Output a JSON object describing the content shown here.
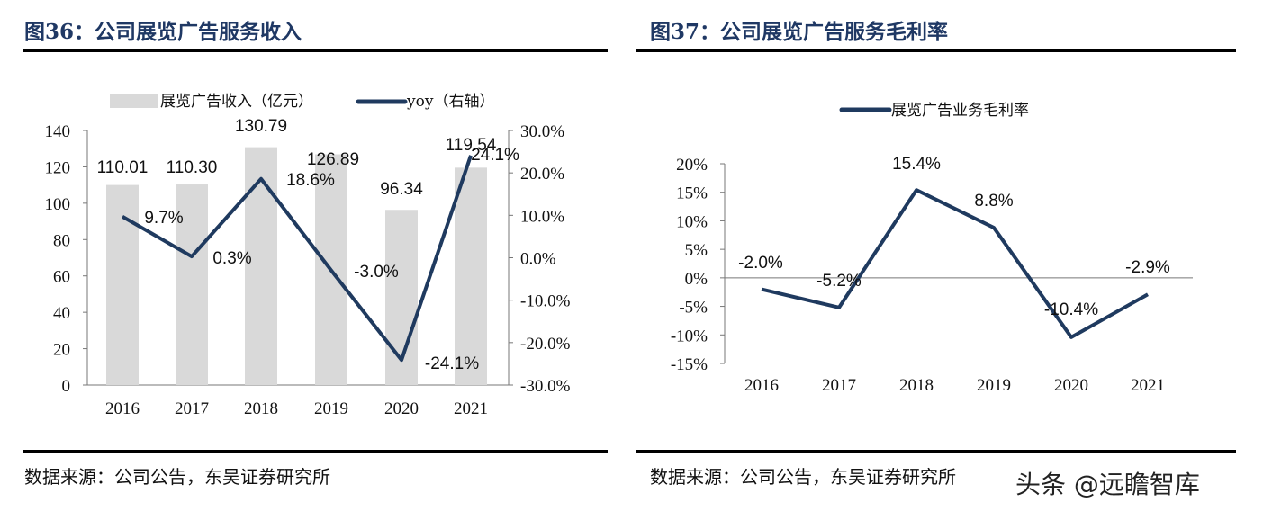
{
  "left": {
    "title": "图36：公司展览广告服务收入",
    "source": "数据来源：公司公告，东吴证券研究所"
  },
  "right": {
    "title": "图37：公司展览广告服务毛利率",
    "source": "数据来源：公司公告，东吴证券研究所"
  },
  "watermark": "头条 @远瞻智库",
  "colors": {
    "bar": "#d9d9d9",
    "line": "#1f3a5f",
    "title": "#1f3864"
  },
  "chart_data": [
    {
      "type": "bar+line",
      "title": "图36：公司展览广告服务收入",
      "categories": [
        "2016",
        "2017",
        "2018",
        "2019",
        "2020",
        "2021"
      ],
      "series": [
        {
          "name": "展览广告收入（亿元）",
          "type": "bar",
          "axis": "left",
          "values": [
            110.01,
            110.3,
            130.79,
            126.89,
            96.34,
            119.54
          ],
          "labels": [
            "110.01",
            "110.30",
            "130.79",
            "126.89",
            "96.34",
            "119.54"
          ]
        },
        {
          "name": "yoy（右轴）",
          "type": "line",
          "axis": "right",
          "values": [
            9.7,
            0.3,
            18.6,
            -3.0,
            -24.1,
            24.1
          ],
          "labels": [
            "9.7%",
            "0.3%",
            "18.6%",
            "-3.0%",
            "-24.1%",
            "24.1%"
          ]
        }
      ],
      "ylim": [
        0,
        140
      ],
      "yticks": [
        "0",
        "20",
        "40",
        "60",
        "80",
        "100",
        "120",
        "140"
      ],
      "y2lim": [
        -30,
        30
      ],
      "y2ticks": [
        "-30.0%",
        "-20.0%",
        "-10.0%",
        "0.0%",
        "10.0%",
        "20.0%",
        "30.0%"
      ],
      "legend": "top",
      "grid": false
    },
    {
      "type": "line",
      "title": "图37：公司展览广告服务毛利率",
      "categories": [
        "2016",
        "2017",
        "2018",
        "2019",
        "2020",
        "2021"
      ],
      "series": [
        {
          "name": "展览广告业务毛利率",
          "values": [
            -2.0,
            -5.2,
            15.4,
            8.8,
            -10.4,
            -2.9
          ],
          "labels": [
            "-2.0%",
            "-5.2%",
            "15.4%",
            "8.8%",
            "-10.4%",
            "-2.9%"
          ]
        }
      ],
      "ylim": [
        -15,
        20
      ],
      "yticks": [
        "-15%",
        "-10%",
        "-5%",
        "0%",
        "5%",
        "10%",
        "15%",
        "20%"
      ],
      "legend": "top",
      "grid": false
    }
  ]
}
